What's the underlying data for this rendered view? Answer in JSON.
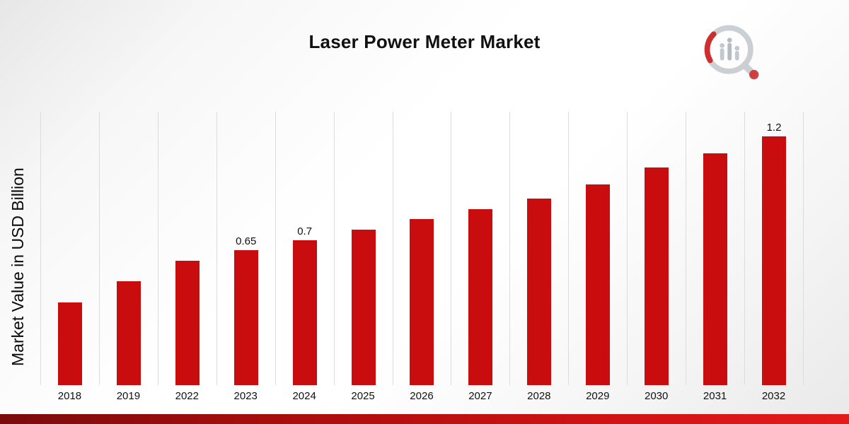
{
  "page": {
    "title": "Laser Power Meter Market"
  },
  "chart_data": {
    "type": "bar",
    "title": "Laser Power Meter Market",
    "xlabel": "",
    "ylabel": "Market Value in USD Billion",
    "categories": [
      "2018",
      "2019",
      "2022",
      "2023",
      "2024",
      "2025",
      "2026",
      "2027",
      "2028",
      "2029",
      "2030",
      "2031",
      "2032"
    ],
    "values": [
      0.4,
      0.5,
      0.6,
      0.65,
      0.7,
      0.75,
      0.8,
      0.85,
      0.9,
      0.97,
      1.05,
      1.12,
      1.2
    ],
    "value_labels": [
      "",
      "",
      "",
      "0.65",
      "0.7",
      "",
      "",
      "",
      "",
      "",
      "",
      "",
      "1.2"
    ],
    "ylim": [
      0,
      1.32
    ],
    "grid": "vertical",
    "legend": "none",
    "bar_color": "#c90d0e",
    "gridline_color": "#dcdcdc",
    "accent_ribbon_colors": [
      "#7a0b0b",
      "#e51a1a"
    ]
  }
}
